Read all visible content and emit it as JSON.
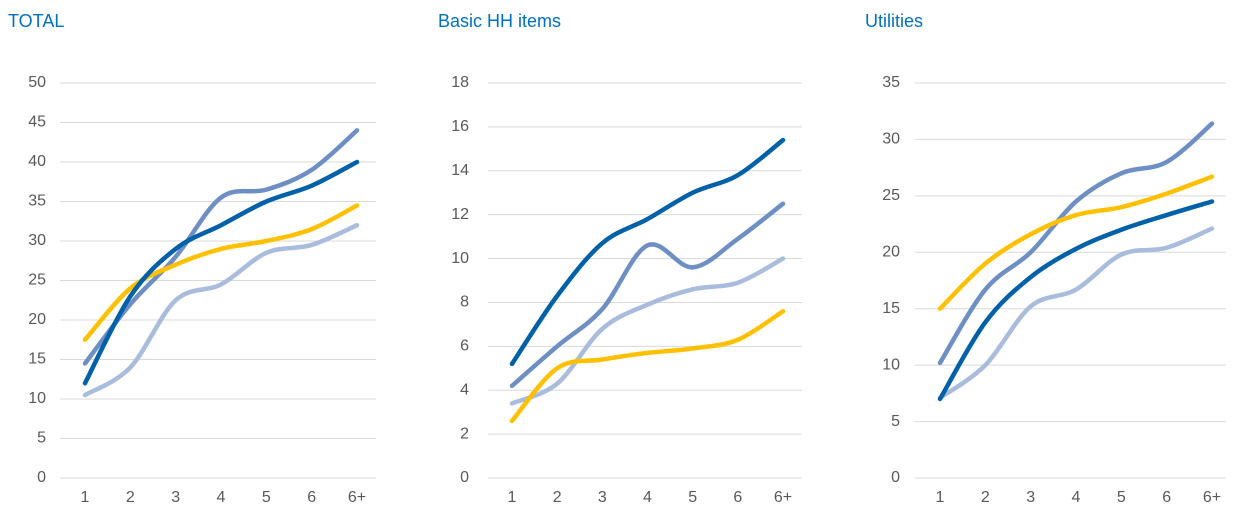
{
  "chart_data": [
    {
      "type": "line",
      "title": "TOTAL",
      "categories": [
        "1",
        "2",
        "3",
        "4",
        "5",
        "6",
        "6+"
      ],
      "ylim": [
        0,
        50
      ],
      "yticks": [
        0,
        5,
        10,
        15,
        20,
        25,
        30,
        35,
        40,
        45,
        50
      ],
      "grid": true,
      "series": [
        {
          "color": "#a9bcdc",
          "values": [
            10.5,
            14,
            22.5,
            24.5,
            28.5,
            29.5,
            32
          ]
        },
        {
          "color": "#6e8fc4",
          "values": [
            14.5,
            22,
            28,
            35.5,
            36.5,
            39,
            44
          ]
        },
        {
          "color": "#ffc000",
          "values": [
            17.5,
            24,
            27,
            29,
            30,
            31.5,
            34.5
          ]
        },
        {
          "color": "#0060a8",
          "values": [
            12,
            23,
            29,
            32,
            35,
            37,
            40
          ]
        }
      ]
    },
    {
      "type": "line",
      "title": "Basic HH items",
      "categories": [
        "1",
        "2",
        "3",
        "4",
        "5",
        "6",
        "6+"
      ],
      "ylim": [
        0,
        18
      ],
      "yticks": [
        0,
        2,
        4,
        6,
        8,
        10,
        12,
        14,
        16,
        18
      ],
      "grid": true,
      "series": [
        {
          "color": "#a9bcdc",
          "values": [
            3.4,
            4.3,
            6.8,
            7.9,
            8.6,
            8.9,
            10
          ]
        },
        {
          "color": "#6e8fc4",
          "values": [
            4.2,
            6,
            7.7,
            10.6,
            9.6,
            10.9,
            12.5
          ]
        },
        {
          "color": "#ffc000",
          "values": [
            2.6,
            5,
            5.4,
            5.7,
            5.9,
            6.3,
            7.6
          ]
        },
        {
          "color": "#0060a8",
          "values": [
            5.2,
            8.3,
            10.7,
            11.8,
            13,
            13.8,
            15.4
          ]
        }
      ]
    },
    {
      "type": "line",
      "title": "Utilities",
      "categories": [
        "1",
        "2",
        "3",
        "4",
        "5",
        "6",
        "6+"
      ],
      "ylim": [
        0,
        35
      ],
      "yticks": [
        0,
        5,
        10,
        15,
        20,
        25,
        30,
        35
      ],
      "grid": true,
      "series": [
        {
          "color": "#a9bcdc",
          "values": [
            7.1,
            10,
            15.2,
            16.7,
            19.8,
            20.4,
            22.1
          ]
        },
        {
          "color": "#6e8fc4",
          "values": [
            10.2,
            16.7,
            20,
            24.5,
            27,
            28,
            31.4
          ]
        },
        {
          "color": "#ffc000",
          "values": [
            15,
            19,
            21.6,
            23.3,
            24,
            25.2,
            26.7
          ]
        },
        {
          "color": "#0060a8",
          "values": [
            7,
            13.8,
            17.8,
            20.3,
            22,
            23.3,
            24.5
          ]
        }
      ]
    }
  ]
}
